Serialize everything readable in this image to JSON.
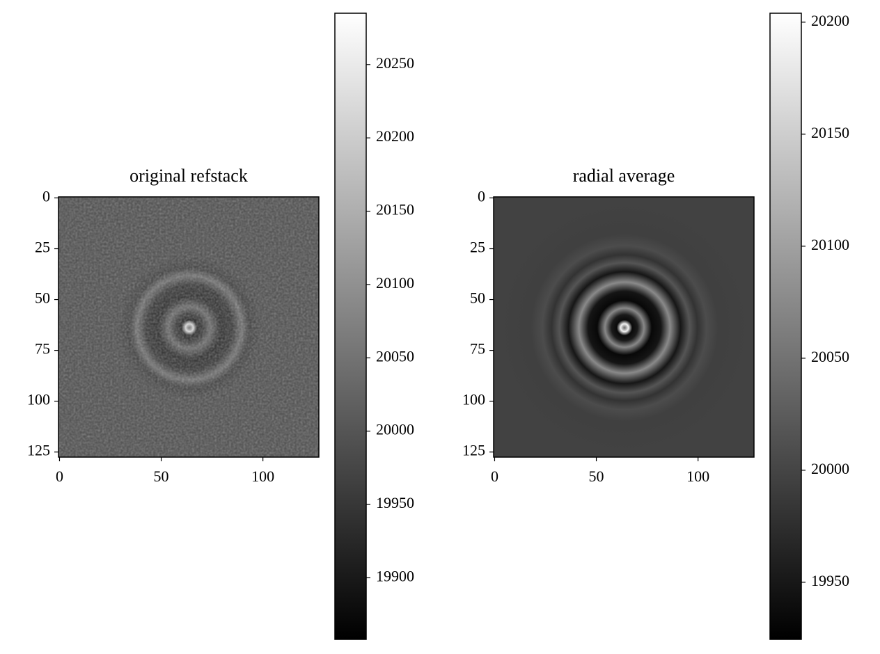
{
  "chart_data": [
    {
      "type": "image",
      "title": "original refstack",
      "colormap": "gray",
      "xlim": [
        -0.5,
        127.5
      ],
      "xticks": [
        0,
        50,
        100
      ],
      "ylim": [
        127.5,
        -0.5
      ],
      "yticks": [
        0,
        25,
        50,
        75,
        100,
        125
      ],
      "clim": [
        19858,
        20285
      ],
      "cticks": [
        19900,
        19950,
        20000,
        20050,
        20100,
        20150,
        20200,
        20250
      ]
    },
    {
      "type": "image",
      "title": "radial average",
      "colormap": "gray",
      "xlim": [
        -0.5,
        127.5
      ],
      "xticks": [
        0,
        50,
        100
      ],
      "ylim": [
        127.5,
        -0.5
      ],
      "yticks": [
        0,
        25,
        50,
        75,
        100,
        125
      ],
      "clim": [
        19924.5,
        20204
      ],
      "cticks": [
        19950,
        20000,
        20050,
        20100,
        20150,
        20200
      ]
    }
  ]
}
